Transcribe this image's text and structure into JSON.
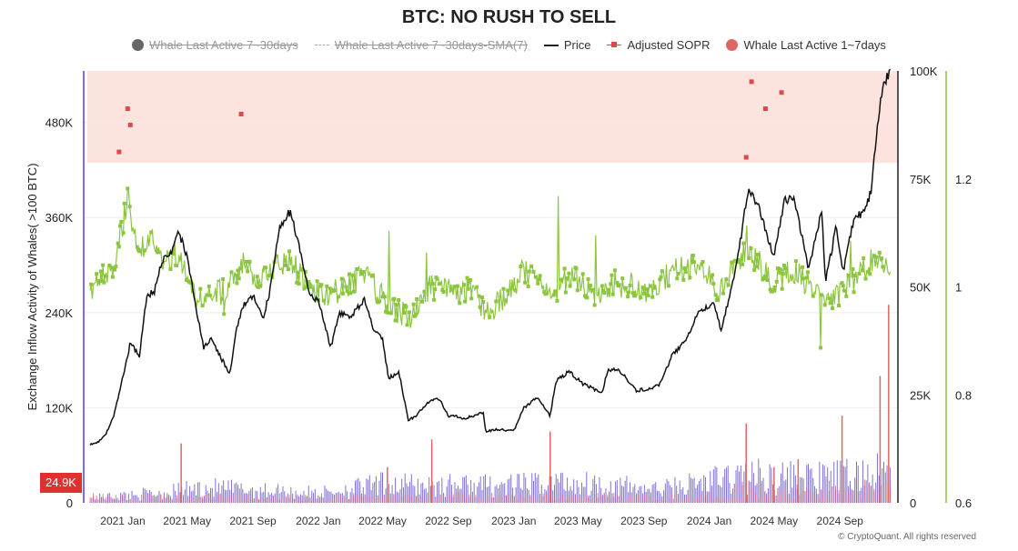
{
  "chart_data": {
    "type": "line",
    "title": "BTC: NO RUSH TO SELL",
    "ylabel": "Exchange Inflow Activity of Whales( >100 BTC)",
    "x_ticks": [
      "2021 Jan",
      "2021 May",
      "2021 Sep",
      "2022 Jan",
      "2022 May",
      "2022 Sep",
      "2023 Jan",
      "2023 May",
      "2023 Sep",
      "2024 Jan",
      "2024 May",
      "2024 Sep"
    ],
    "left_axis": {
      "ticks": [
        "0",
        "120K",
        "240K",
        "360K",
        "480K"
      ],
      "range": [
        0,
        545000
      ]
    },
    "price_axis": {
      "ticks": [
        "0",
        "25K",
        "50K",
        "75K",
        "100K"
      ],
      "range": [
        0,
        100000
      ]
    },
    "sopr_axis": {
      "ticks": [
        "0.6",
        "0.8",
        "1",
        "1.2"
      ],
      "range": [
        0.6,
        1.4
      ]
    },
    "current_value_label": "24.9K",
    "legend": [
      {
        "name": "Whale Last Active 7~30days",
        "symbol": "dot",
        "color": "#666666",
        "hidden": true
      },
      {
        "name": "Whale Last Active 7~30days-SMA(7)",
        "symbol": "dash",
        "color": "#aaaaaa",
        "hidden": true
      },
      {
        "name": "Price",
        "symbol": "line",
        "color": "#222222",
        "hidden": false
      },
      {
        "name": "Adjusted SOPR",
        "symbol": "square",
        "color": "#d94a4a",
        "hidden": false
      },
      {
        "name": "Whale Last Active 1~7days",
        "symbol": "dot",
        "color": "#e06666",
        "hidden": false
      }
    ],
    "shaded_band": {
      "axis": "sopr",
      "from": 1.23,
      "to": 1.4,
      "color": "#fde3de"
    },
    "series": [
      {
        "name": "Price",
        "axis": "price",
        "color": "#111111",
        "points": [
          [
            "2020-11-01",
            13500
          ],
          [
            "2020-11-15",
            14000
          ],
          [
            "2020-12-01",
            16000
          ],
          [
            "2020-12-15",
            20000
          ],
          [
            "2021-01-01",
            29000
          ],
          [
            "2021-01-15",
            37000
          ],
          [
            "2021-02-01",
            34000
          ],
          [
            "2021-02-15",
            48000
          ],
          [
            "2021-03-01",
            49000
          ],
          [
            "2021-03-15",
            56000
          ],
          [
            "2021-04-01",
            58000
          ],
          [
            "2021-04-15",
            63000
          ],
          [
            "2021-05-01",
            57000
          ],
          [
            "2021-05-15",
            47000
          ],
          [
            "2021-06-01",
            36000
          ],
          [
            "2021-06-15",
            38000
          ],
          [
            "2021-07-01",
            34000
          ],
          [
            "2021-07-20",
            30000
          ],
          [
            "2021-08-01",
            40000
          ],
          [
            "2021-08-15",
            46000
          ],
          [
            "2021-09-01",
            48000
          ],
          [
            "2021-09-20",
            43000
          ],
          [
            "2021-10-01",
            48000
          ],
          [
            "2021-10-20",
            64000
          ],
          [
            "2021-11-10",
            67500
          ],
          [
            "2021-12-01",
            57000
          ],
          [
            "2021-12-15",
            48000
          ],
          [
            "2022-01-01",
            47000
          ],
          [
            "2022-01-24",
            36000
          ],
          [
            "2022-02-10",
            44000
          ],
          [
            "2022-03-01",
            43000
          ],
          [
            "2022-03-28",
            47000
          ],
          [
            "2022-04-15",
            40000
          ],
          [
            "2022-05-01",
            38000
          ],
          [
            "2022-05-12",
            29000
          ],
          [
            "2022-06-01",
            30000
          ],
          [
            "2022-06-18",
            19000
          ],
          [
            "2022-07-01",
            20000
          ],
          [
            "2022-07-30",
            24000
          ],
          [
            "2022-08-15",
            24000
          ],
          [
            "2022-09-01",
            20000
          ],
          [
            "2022-09-15",
            20000
          ],
          [
            "2022-10-01",
            19500
          ],
          [
            "2022-11-05",
            21000
          ],
          [
            "2022-11-10",
            16500
          ],
          [
            "2022-12-01",
            17000
          ],
          [
            "2023-01-01",
            16600
          ],
          [
            "2023-01-20",
            22000
          ],
          [
            "2023-02-15",
            24500
          ],
          [
            "2023-03-10",
            20000
          ],
          [
            "2023-03-20",
            28000
          ],
          [
            "2023-04-14",
            30500
          ],
          [
            "2023-05-10",
            27500
          ],
          [
            "2023-06-15",
            25500
          ],
          [
            "2023-06-25",
            30500
          ],
          [
            "2023-07-15",
            31000
          ],
          [
            "2023-08-17",
            26000
          ],
          [
            "2023-09-15",
            26500
          ],
          [
            "2023-10-01",
            27500
          ],
          [
            "2023-10-25",
            34500
          ],
          [
            "2023-11-15",
            37000
          ],
          [
            "2023-12-10",
            43500
          ],
          [
            "2024-01-10",
            46500
          ],
          [
            "2024-01-23",
            39500
          ],
          [
            "2024-02-15",
            52000
          ],
          [
            "2024-03-01",
            62000
          ],
          [
            "2024-03-14",
            73000
          ],
          [
            "2024-04-01",
            69000
          ],
          [
            "2024-04-15",
            63000
          ],
          [
            "2024-05-01",
            57000
          ],
          [
            "2024-05-20",
            70000
          ],
          [
            "2024-06-07",
            71000
          ],
          [
            "2024-07-05",
            54000
          ],
          [
            "2024-07-29",
            68000
          ],
          [
            "2024-08-05",
            51000
          ],
          [
            "2024-08-25",
            64000
          ],
          [
            "2024-09-06",
            53000
          ],
          [
            "2024-09-27",
            66000
          ],
          [
            "2024-10-15",
            67000
          ],
          [
            "2024-10-29",
            72000
          ],
          [
            "2024-11-11",
            88000
          ],
          [
            "2024-11-22",
            98000
          ],
          [
            "2024-12-05",
            99000
          ]
        ]
      },
      {
        "name": "Adjusted SOPR",
        "axis": "sopr",
        "color": "#8cc63f",
        "points": [
          [
            "2020-11-01",
            1.0
          ],
          [
            "2020-12-01",
            1.02
          ],
          [
            "2020-12-20",
            1.06
          ],
          [
            "2021-01-10",
            1.16
          ],
          [
            "2021-02-01",
            1.07
          ],
          [
            "2021-02-20",
            1.09
          ],
          [
            "2021-03-15",
            1.05
          ],
          [
            "2021-04-15",
            1.06
          ],
          [
            "2021-05-15",
            0.98
          ],
          [
            "2021-06-15",
            0.99
          ],
          [
            "2021-07-15",
            0.99
          ],
          [
            "2021-08-15",
            1.04
          ],
          [
            "2021-09-15",
            1.01
          ],
          [
            "2021-10-20",
            1.05
          ],
          [
            "2021-11-15",
            1.04
          ],
          [
            "2021-12-15",
            1.0
          ],
          [
            "2022-01-15",
            0.98
          ],
          [
            "2022-02-15",
            1.0
          ],
          [
            "2022-03-28",
            1.02
          ],
          [
            "2022-05-01",
            0.98
          ],
          [
            "2022-06-18",
            0.94
          ],
          [
            "2022-07-30",
            1.0
          ],
          [
            "2022-09-01",
            0.99
          ],
          [
            "2022-10-15",
            1.0
          ],
          [
            "2022-11-10",
            0.95
          ],
          [
            "2022-12-15",
            0.98
          ],
          [
            "2023-01-20",
            1.03
          ],
          [
            "2023-03-10",
            0.98
          ],
          [
            "2023-04-15",
            1.02
          ],
          [
            "2023-06-01",
            0.99
          ],
          [
            "2023-07-15",
            1.01
          ],
          [
            "2023-09-15",
            0.99
          ],
          [
            "2023-10-25",
            1.03
          ],
          [
            "2023-12-10",
            1.04
          ],
          [
            "2024-01-23",
            0.99
          ],
          [
            "2024-03-14",
            1.07
          ],
          [
            "2024-05-01",
            1.01
          ],
          [
            "2024-06-07",
            1.03
          ],
          [
            "2024-08-05",
            0.97
          ],
          [
            "2024-09-27",
            1.01
          ],
          [
            "2024-11-11",
            1.06
          ],
          [
            "2024-12-05",
            1.02
          ]
        ]
      },
      {
        "name": "Whale Last Active 1~7days",
        "axis": "left",
        "color": "#e06666",
        "style": "bars",
        "spikes": [
          [
            "2021-04-20",
            75000
          ],
          [
            "2022-05-10",
            45000
          ],
          [
            "2022-08-01",
            80000
          ],
          [
            "2023-03-10",
            90000
          ],
          [
            "2024-03-10",
            100000
          ],
          [
            "2024-05-01",
            45000
          ],
          [
            "2024-06-15",
            55000
          ],
          [
            "2024-09-05",
            110000
          ],
          [
            "2024-11-15",
            160000
          ],
          [
            "2024-12-01",
            250000
          ]
        ]
      },
      {
        "name": "Whale Last Active 7~30days",
        "axis": "left",
        "color": "#6a5acd",
        "style": "bars",
        "levels": [
          [
            "2020-11-01",
            8000
          ],
          [
            "2021-04-01",
            18000
          ],
          [
            "2021-06-01",
            25000
          ],
          [
            "2022-01-01",
            16000
          ],
          [
            "2022-05-01",
            30000
          ],
          [
            "2023-01-01",
            28000
          ],
          [
            "2023-04-01",
            35000
          ],
          [
            "2023-10-01",
            22000
          ],
          [
            "2024-03-01",
            45000
          ],
          [
            "2024-08-01",
            40000
          ],
          [
            "2024-12-05",
            50000
          ]
        ]
      }
    ]
  },
  "footer": {
    "copyright": "© CryptoQuant. All rights reserved"
  }
}
